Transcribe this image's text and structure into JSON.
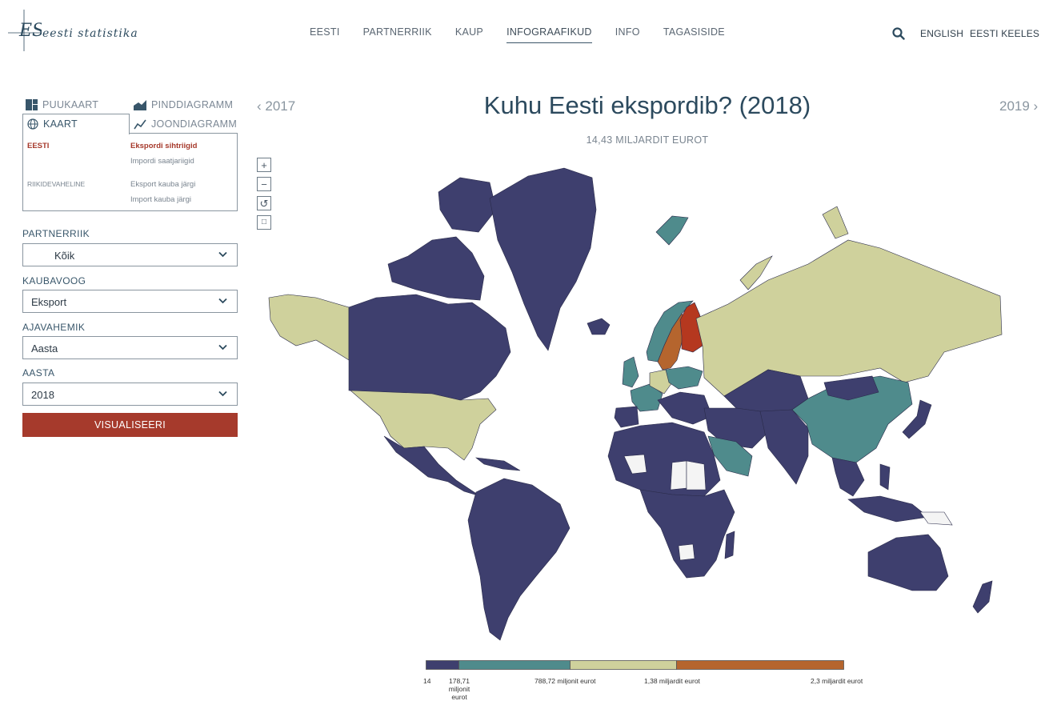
{
  "header": {
    "logo_text": "eesti statistika",
    "nav": [
      "EESTI",
      "PARTNERRIIK",
      "KAUP",
      "INFOGRAAFIKUD",
      "INFO",
      "TAGASISIDE"
    ],
    "active_nav": "INFOGRAAFIKUD",
    "lang_english": "ENGLISH",
    "lang_estonian": "EESTI KEELES"
  },
  "viz_tabs": {
    "puukaart": "PUUKAART",
    "pinddiagramm": "PINDDIAGRAMM",
    "kaart": "KAART",
    "joondiagramm": "JOONDIAGRAMM"
  },
  "tab_panel": {
    "eesti": "EESTI",
    "ekspordi_sihtriigid": "Ekspordi sihtriigid",
    "impordi_saatjariigid": "Impordi saatjariigid",
    "riikidevaheline": "RIIKIDEVAHELINE",
    "eksport_kauba": "Eksport kauba järgi",
    "import_kauba": "Import kauba järgi"
  },
  "filters": {
    "partnerriik_label": "PARTNERRIIK",
    "partnerriik_value": "Kõik",
    "kaubavoog_label": "KAUBAVOOG",
    "kaubavoog_value": "Eksport",
    "ajavahemik_label": "AJAVAHEMIK",
    "ajavahemik_value": "Aasta",
    "aasta_label": "AASTA",
    "aasta_value": "2018",
    "visualize_button": "VISUALISEERI"
  },
  "title": {
    "prev_year": "2017",
    "next_year": "2019",
    "main": "Kuhu Eesti ekspordib? (2018)",
    "subtitle": "14,43 MILJARDIT EUROT"
  },
  "zoom": {
    "in": "+",
    "out": "−",
    "reset": "↺",
    "fit": "□"
  },
  "colors": {
    "accent_red": "#a63a2c",
    "navy": "#3e3f6e",
    "teal": "#4f8b8c",
    "khaki": "#cfd19c",
    "orange": "#b5652e",
    "red": "#b5381f"
  },
  "legend": {
    "labels": [
      "14",
      "178,71 miljonit eurot",
      "788,72 miljonit eurot",
      "1,38 miljardit eurot",
      "2,3 miljardit eurot"
    ]
  }
}
